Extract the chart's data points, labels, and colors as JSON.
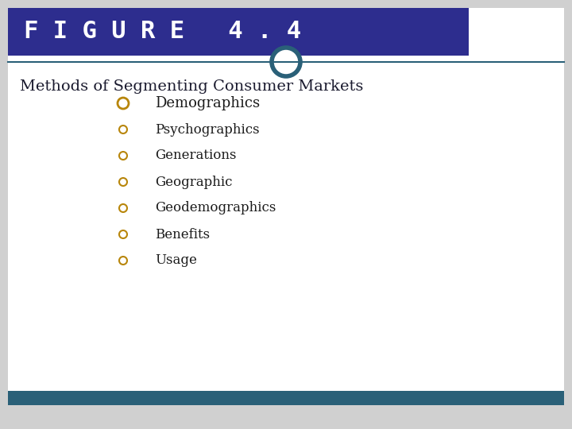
{
  "title": "F I G U R E   4 . 4",
  "title_bg_color": "#2d2d8e",
  "title_text_color": "#ffffff",
  "subtitle": "Methods of Segmenting Consumer Markets",
  "subtitle_color": "#1a1a2e",
  "body_bg_color": "#ffffff",
  "footer_bg_color": "#2a6078",
  "outer_border_color": "#cccccc",
  "divider_line_color": "#2a6078",
  "circle_color": "#2a6078",
  "bullet_color": "#b8860b",
  "bullet_items": [
    "Demographics",
    "Psychographics",
    "Generations",
    "Geographic",
    "Geodemographics",
    "Benefits",
    "Usage"
  ],
  "item_text_color": "#1a1a1a",
  "item_font_size": 13,
  "subtitle_font_size": 14,
  "title_font_size": 22
}
